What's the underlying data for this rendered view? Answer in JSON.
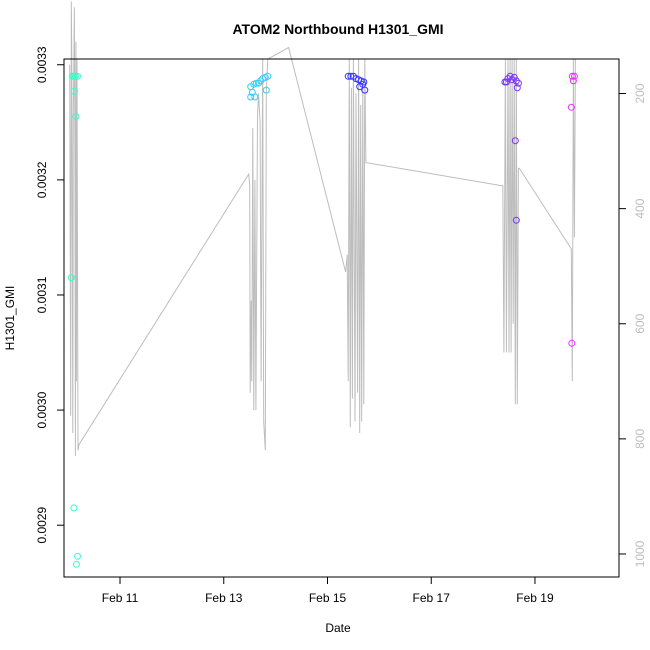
{
  "chart_data": {
    "type": "scatter",
    "title": "ATOM2 Northbound H1301_GMI",
    "xlabel": "Date",
    "ylabel": "H1301_GMI",
    "x_ticks": [
      {
        "day": 11,
        "label": "Feb 11"
      },
      {
        "day": 13,
        "label": "Feb 13"
      },
      {
        "day": 15,
        "label": "Feb 15"
      },
      {
        "day": 17,
        "label": "Feb 17"
      },
      {
        "day": 19,
        "label": "Feb 19"
      }
    ],
    "xlim": [
      9.92,
      20.62
    ],
    "ylim": [
      0.002855,
      0.003305
    ],
    "y_ticks": [
      {
        "value": 0.0029,
        "label": "0.0029"
      },
      {
        "value": 0.003,
        "label": "0.0030"
      },
      {
        "value": 0.0031,
        "label": "0.0031"
      },
      {
        "value": 0.0032,
        "label": "0.0032"
      },
      {
        "value": 0.0033,
        "label": "0.0033"
      }
    ],
    "y2lim": [
      1040,
      140
    ],
    "y2_ticks": [
      {
        "value": 200,
        "label": "200"
      },
      {
        "value": 400,
        "label": "400"
      },
      {
        "value": 600,
        "label": "600"
      },
      {
        "value": 800,
        "label": "800"
      },
      {
        "value": 1000,
        "label": "1000"
      }
    ],
    "points": [
      {
        "x": 10.08,
        "y": 0.00329,
        "c": "#33ffb8"
      },
      {
        "x": 10.11,
        "y": 0.00329,
        "c": "#33ffc0"
      },
      {
        "x": 10.14,
        "y": 0.00329,
        "c": "#33ffc8"
      },
      {
        "x": 10.18,
        "y": 0.00329,
        "c": "#33ffd0"
      },
      {
        "x": 10.12,
        "y": 0.003277,
        "c": "#33ffcc"
      },
      {
        "x": 10.15,
        "y": 0.003255,
        "c": "#33ffcc"
      },
      {
        "x": 10.06,
        "y": 0.003115,
        "c": "#33ffcc"
      },
      {
        "x": 10.11,
        "y": 0.002915,
        "c": "#33ffcc"
      },
      {
        "x": 10.18,
        "y": 0.002873,
        "c": "#33ffcc"
      },
      {
        "x": 10.16,
        "y": 0.002866,
        "c": "#33ffcc"
      },
      {
        "x": 13.52,
        "y": 0.003281,
        "c": "#33ccff"
      },
      {
        "x": 13.58,
        "y": 0.003283,
        "c": "#33ccff"
      },
      {
        "x": 13.63,
        "y": 0.003284,
        "c": "#33ccff"
      },
      {
        "x": 13.67,
        "y": 0.003284,
        "c": "#33ccff"
      },
      {
        "x": 13.71,
        "y": 0.003286,
        "c": "#33ccff"
      },
      {
        "x": 13.75,
        "y": 0.003288,
        "c": "#33ccff"
      },
      {
        "x": 13.8,
        "y": 0.003289,
        "c": "#33ccff"
      },
      {
        "x": 13.85,
        "y": 0.00329,
        "c": "#33ccff"
      },
      {
        "x": 13.55,
        "y": 0.003276,
        "c": "#33ccff"
      },
      {
        "x": 13.52,
        "y": 0.003272,
        "c": "#33ccff"
      },
      {
        "x": 13.6,
        "y": 0.003272,
        "c": "#33ccff"
      },
      {
        "x": 13.82,
        "y": 0.003278,
        "c": "#33ccff"
      },
      {
        "x": 15.4,
        "y": 0.00329,
        "c": "#3333ff"
      },
      {
        "x": 15.45,
        "y": 0.00329,
        "c": "#3333ff"
      },
      {
        "x": 15.5,
        "y": 0.00329,
        "c": "#3333ff"
      },
      {
        "x": 15.55,
        "y": 0.003288,
        "c": "#3333ff"
      },
      {
        "x": 15.6,
        "y": 0.003287,
        "c": "#3333ff"
      },
      {
        "x": 15.65,
        "y": 0.003286,
        "c": "#3333ff"
      },
      {
        "x": 15.7,
        "y": 0.003285,
        "c": "#3333ff"
      },
      {
        "x": 15.62,
        "y": 0.003281,
        "c": "#3333ff"
      },
      {
        "x": 15.68,
        "y": 0.003283,
        "c": "#3333ff"
      },
      {
        "x": 15.72,
        "y": 0.003278,
        "c": "#3333ff"
      },
      {
        "x": 18.42,
        "y": 0.003285,
        "c": "#7a33ff"
      },
      {
        "x": 18.48,
        "y": 0.003288,
        "c": "#7a33ff"
      },
      {
        "x": 18.52,
        "y": 0.00329,
        "c": "#7a33ff"
      },
      {
        "x": 18.56,
        "y": 0.003287,
        "c": "#7a33ff"
      },
      {
        "x": 18.6,
        "y": 0.003289,
        "c": "#7a33ff"
      },
      {
        "x": 18.64,
        "y": 0.003286,
        "c": "#7a33ff"
      },
      {
        "x": 18.68,
        "y": 0.003284,
        "c": "#7a33ff"
      },
      {
        "x": 18.45,
        "y": 0.003285,
        "c": "#7a33ff"
      },
      {
        "x": 18.66,
        "y": 0.00328,
        "c": "#7a33ff"
      },
      {
        "x": 18.62,
        "y": 0.003234,
        "c": "#7a33ff"
      },
      {
        "x": 18.64,
        "y": 0.003165,
        "c": "#7a33ff"
      },
      {
        "x": 19.72,
        "y": 0.00329,
        "c": "#e833ff"
      },
      {
        "x": 19.76,
        "y": 0.00329,
        "c": "#e833ff"
      },
      {
        "x": 19.74,
        "y": 0.003286,
        "c": "#e833ff"
      },
      {
        "x": 19.7,
        "y": 0.003263,
        "c": "#e833ff"
      },
      {
        "x": 19.71,
        "y": 0.003058,
        "c": "#e833ff"
      }
    ],
    "pressure_line": {
      "color": "#bdbdbd",
      "x": [
        10.03,
        10.05,
        10.06,
        10.07,
        10.09,
        10.1,
        10.12,
        10.13,
        10.14,
        10.15,
        10.16,
        10.17,
        10.19,
        10.21,
        13.48,
        13.5,
        13.51,
        13.53,
        13.54,
        13.56,
        13.58,
        13.6,
        13.62,
        13.65,
        13.67,
        13.7,
        13.72,
        13.75,
        13.77,
        13.8,
        13.82,
        13.85,
        14.25,
        15.35,
        15.38,
        15.4,
        15.42,
        15.44,
        15.46,
        15.48,
        15.5,
        15.53,
        15.55,
        15.58,
        15.6,
        15.62,
        15.64,
        15.66,
        15.68,
        15.7,
        15.72,
        15.74,
        18.35,
        18.38,
        18.4,
        18.43,
        18.45,
        18.48,
        18.5,
        18.52,
        18.54,
        18.56,
        18.58,
        18.6,
        18.62,
        18.64,
        18.66,
        18.68,
        18.7,
        19.7,
        19.72,
        19.74,
        19.76,
        19.78
      ],
      "y": [
        150,
        760,
        40,
        140,
        790,
        240,
        50,
        310,
        830,
        110,
        700,
        140,
        820,
        810,
        340,
        360,
        720,
        560,
        700,
        260,
        750,
        350,
        750,
        240,
        200,
        250,
        700,
        140,
        770,
        820,
        200,
        140,
        120,
        510,
        480,
        700,
        140,
        780,
        190,
        730,
        140,
        770,
        200,
        720,
        140,
        790,
        220,
        770,
        190,
        740,
        140,
        320,
        360,
        360,
        650,
        140,
        650,
        140,
        650,
        140,
        650,
        140,
        600,
        140,
        740,
        140,
        740,
        330,
        330,
        470,
        700,
        140,
        450,
        140
      ]
    }
  }
}
